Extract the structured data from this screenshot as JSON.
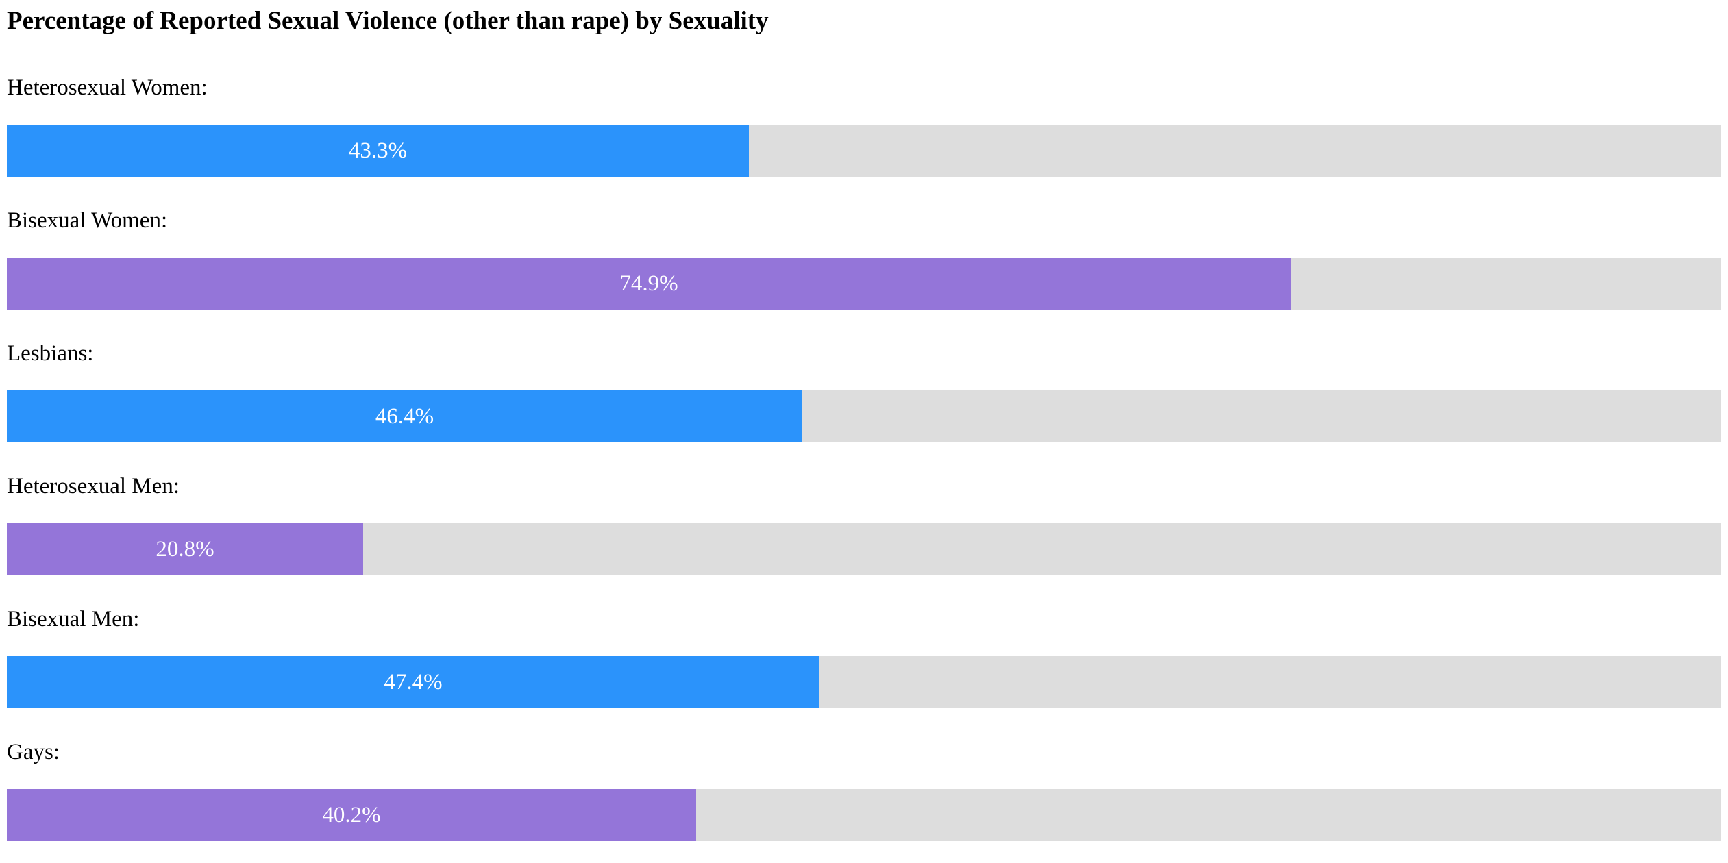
{
  "chart_data": {
    "type": "bar",
    "orientation": "horizontal",
    "title": "Percentage of Reported Sexual Violence (other than rape) by Sexuality",
    "xlim": [
      0,
      100
    ],
    "categories": [
      "Heterosexual Women:",
      "Bisexual Women:",
      "Lesbians:",
      "Heterosexual Men:",
      "Bisexual Men:",
      "Gays:"
    ],
    "values": [
      43.3,
      74.9,
      46.4,
      20.8,
      47.4,
      40.2
    ],
    "value_labels": [
      "43.3%",
      "74.9%",
      "46.4%",
      "20.8%",
      "47.4%",
      "40.2%"
    ],
    "bar_colors": [
      "#2b93fb",
      "#9475d9",
      "#2b93fb",
      "#9475d9",
      "#2b93fb",
      "#9475d9"
    ],
    "track_color": "#dddddd",
    "grid": false,
    "legend": "none"
  }
}
